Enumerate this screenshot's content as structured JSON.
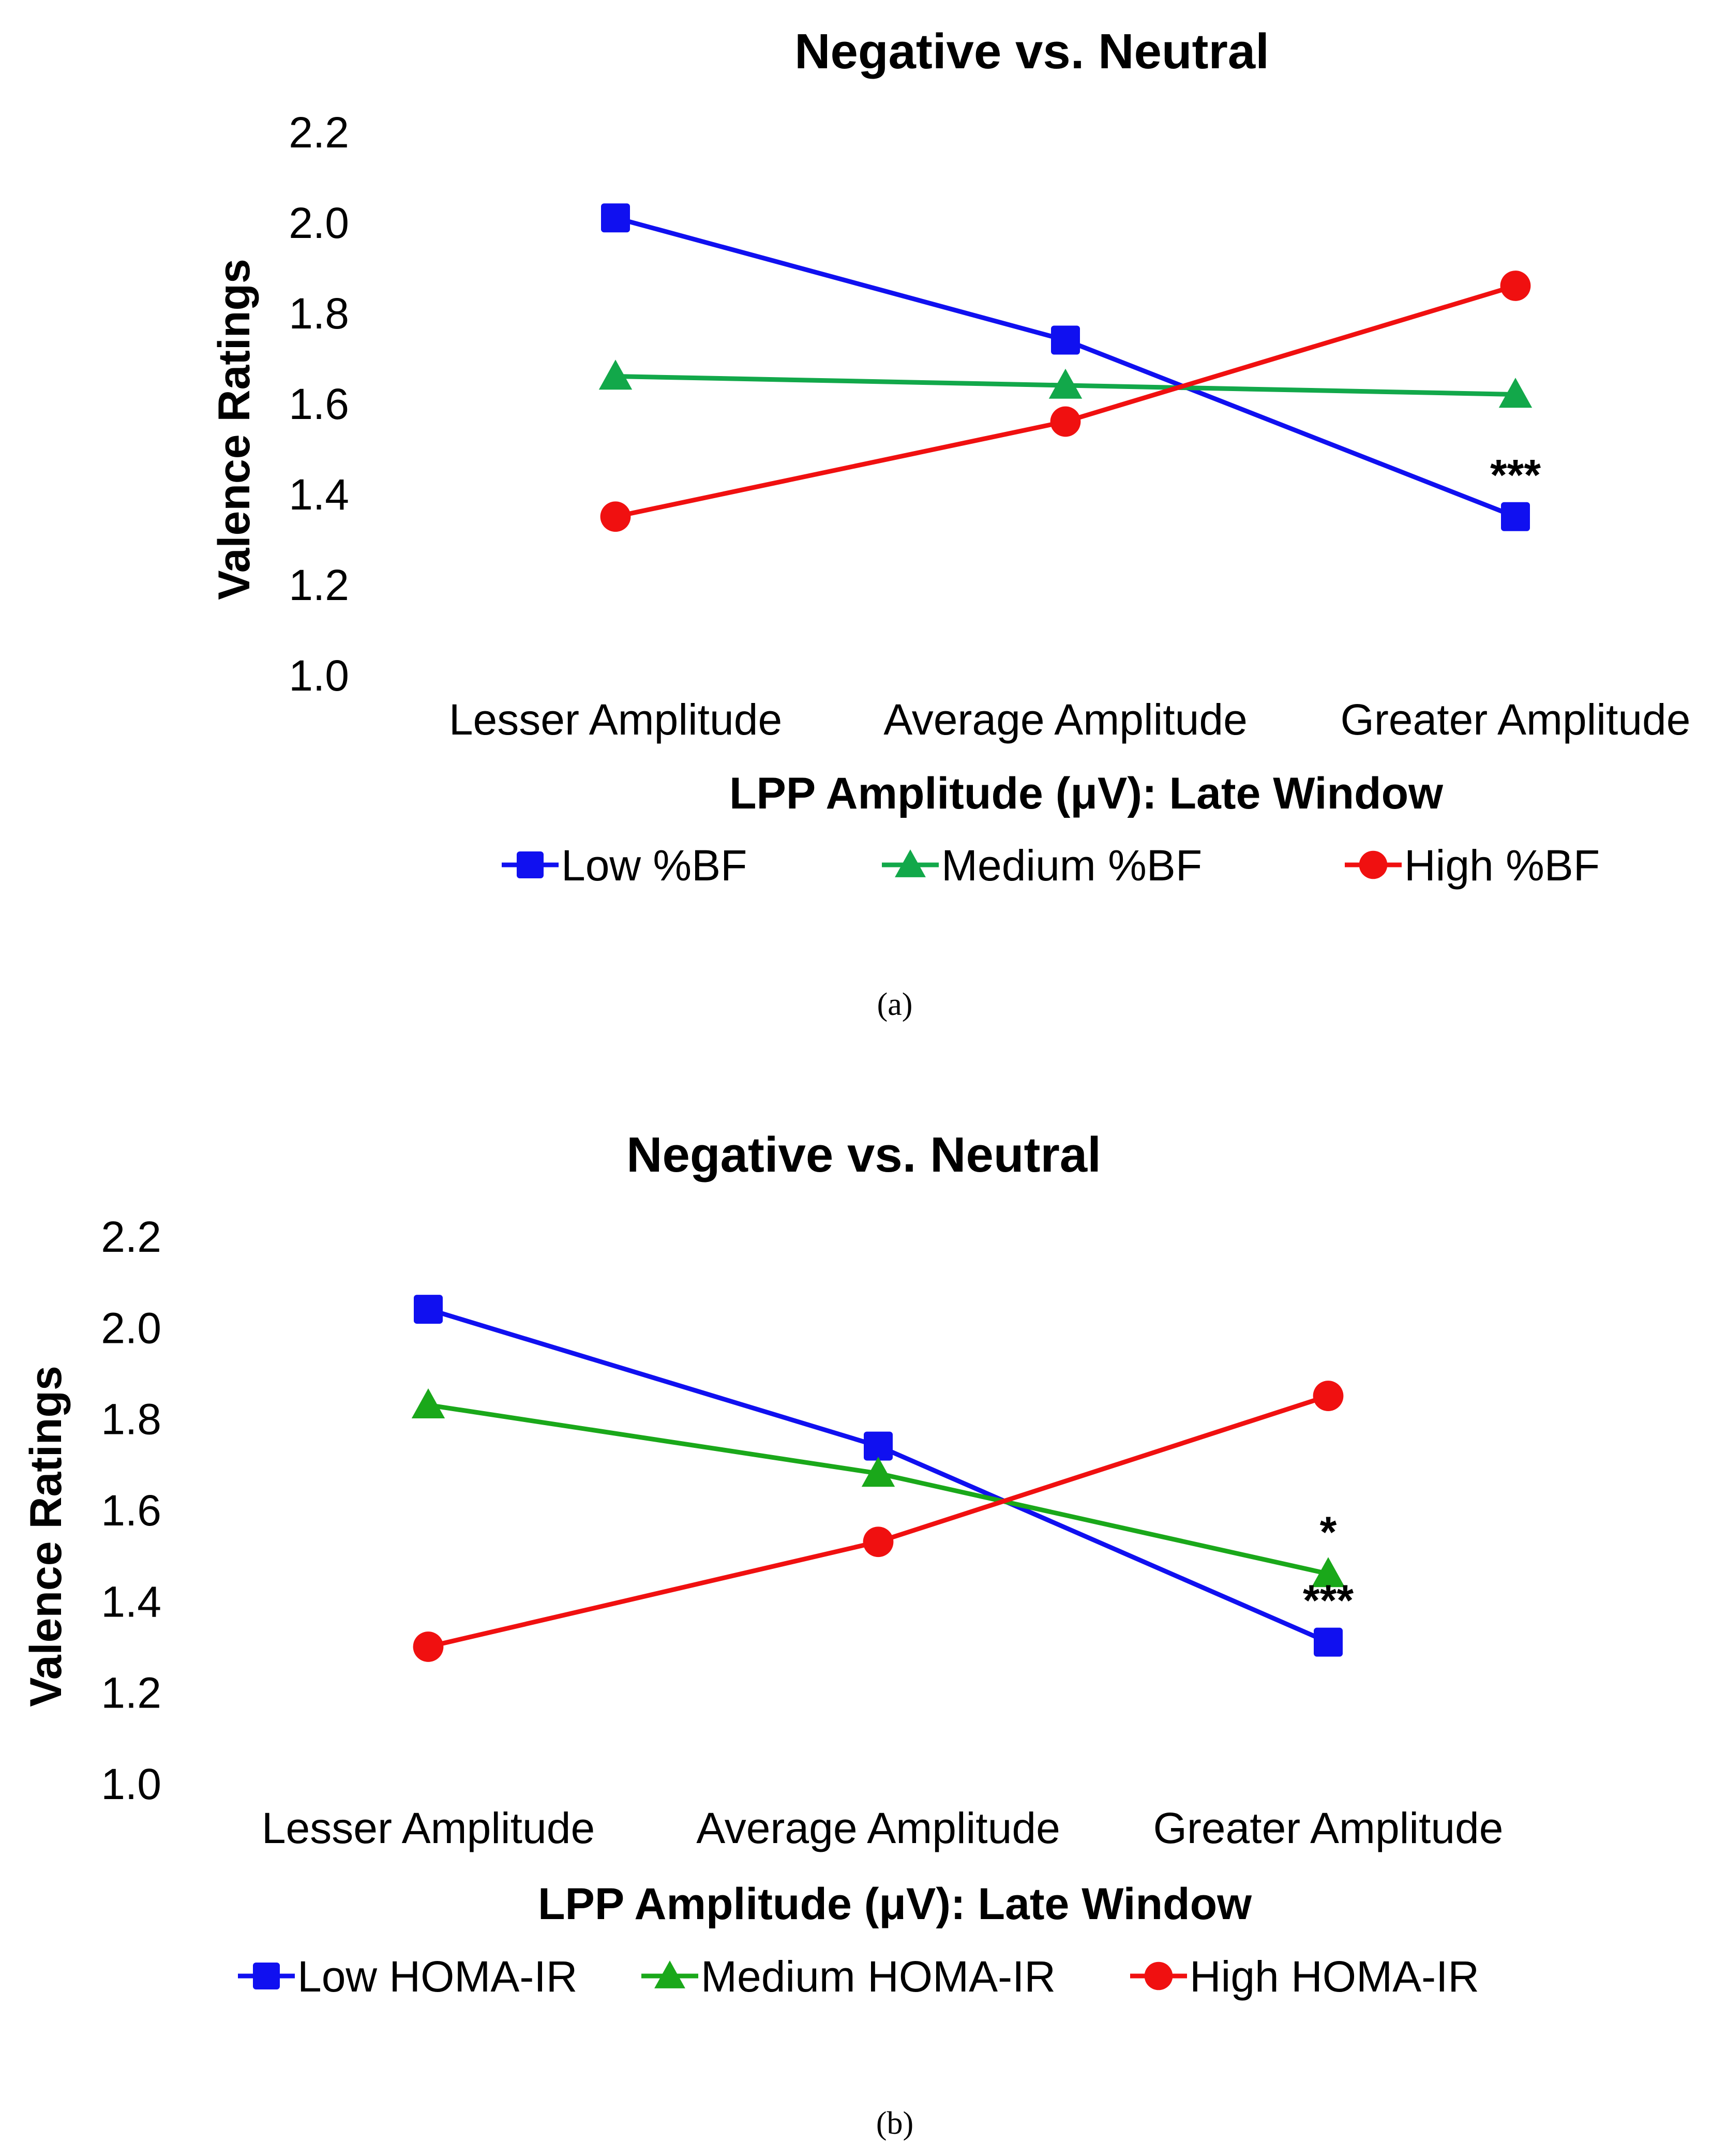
{
  "chart_data": [
    {
      "panel": "(a)",
      "type": "line",
      "title": "Negative vs. Neutral",
      "xlabel": "LPP Amplitude (μV): Late Window",
      "ylabel": "Valence Ratings",
      "categories": [
        "Lesser Amplitude",
        "Average Amplitude",
        "Greater Amplitude"
      ],
      "ylim": [
        1.0,
        2.2
      ],
      "yticks": [
        "1.0",
        "1.2",
        "1.4",
        "1.6",
        "1.8",
        "2.0",
        "2.2"
      ],
      "grid": false,
      "legend_position": "bottom",
      "series": [
        {
          "name": "Low %BF",
          "color": "#1010f0",
          "marker": "square",
          "values": [
            2.01,
            1.74,
            1.35
          ]
        },
        {
          "name": "Medium %BF",
          "color": "#12a84a",
          "marker": "triangle",
          "values": [
            1.66,
            1.64,
            1.62
          ]
        },
        {
          "name": "High %BF",
          "color": "#f01010",
          "marker": "circle",
          "values": [
            1.35,
            1.56,
            1.86
          ]
        }
      ],
      "annotations": [
        {
          "text": "***",
          "series": 0,
          "point": 2
        }
      ]
    },
    {
      "panel": "(b)",
      "type": "line",
      "title": "Negative vs. Neutral",
      "xlabel": "LPP Amplitude (μV): Late Window",
      "ylabel": "Valence Ratings",
      "categories": [
        "Lesser Amplitude",
        "Average Amplitude",
        "Greater Amplitude"
      ],
      "ylim": [
        1.0,
        2.2
      ],
      "yticks": [
        "1.0",
        "1.2",
        "1.4",
        "1.6",
        "1.8",
        "2.0",
        "2.2"
      ],
      "grid": false,
      "legend_position": "bottom",
      "series": [
        {
          "name": "Low HOMA-IR",
          "color": "#1010f0",
          "marker": "square",
          "values": [
            2.04,
            1.74,
            1.31
          ]
        },
        {
          "name": "Medium HOMA-IR",
          "color": "#1aa81a",
          "marker": "triangle",
          "values": [
            1.83,
            1.68,
            1.46
          ]
        },
        {
          "name": "High HOMA-IR",
          "color": "#f01010",
          "marker": "circle",
          "values": [
            1.3,
            1.53,
            1.85
          ]
        }
      ],
      "annotations": [
        {
          "text": "*",
          "series": 1,
          "point": 2
        },
        {
          "text": "***",
          "series": 0,
          "point": 2
        }
      ]
    }
  ]
}
